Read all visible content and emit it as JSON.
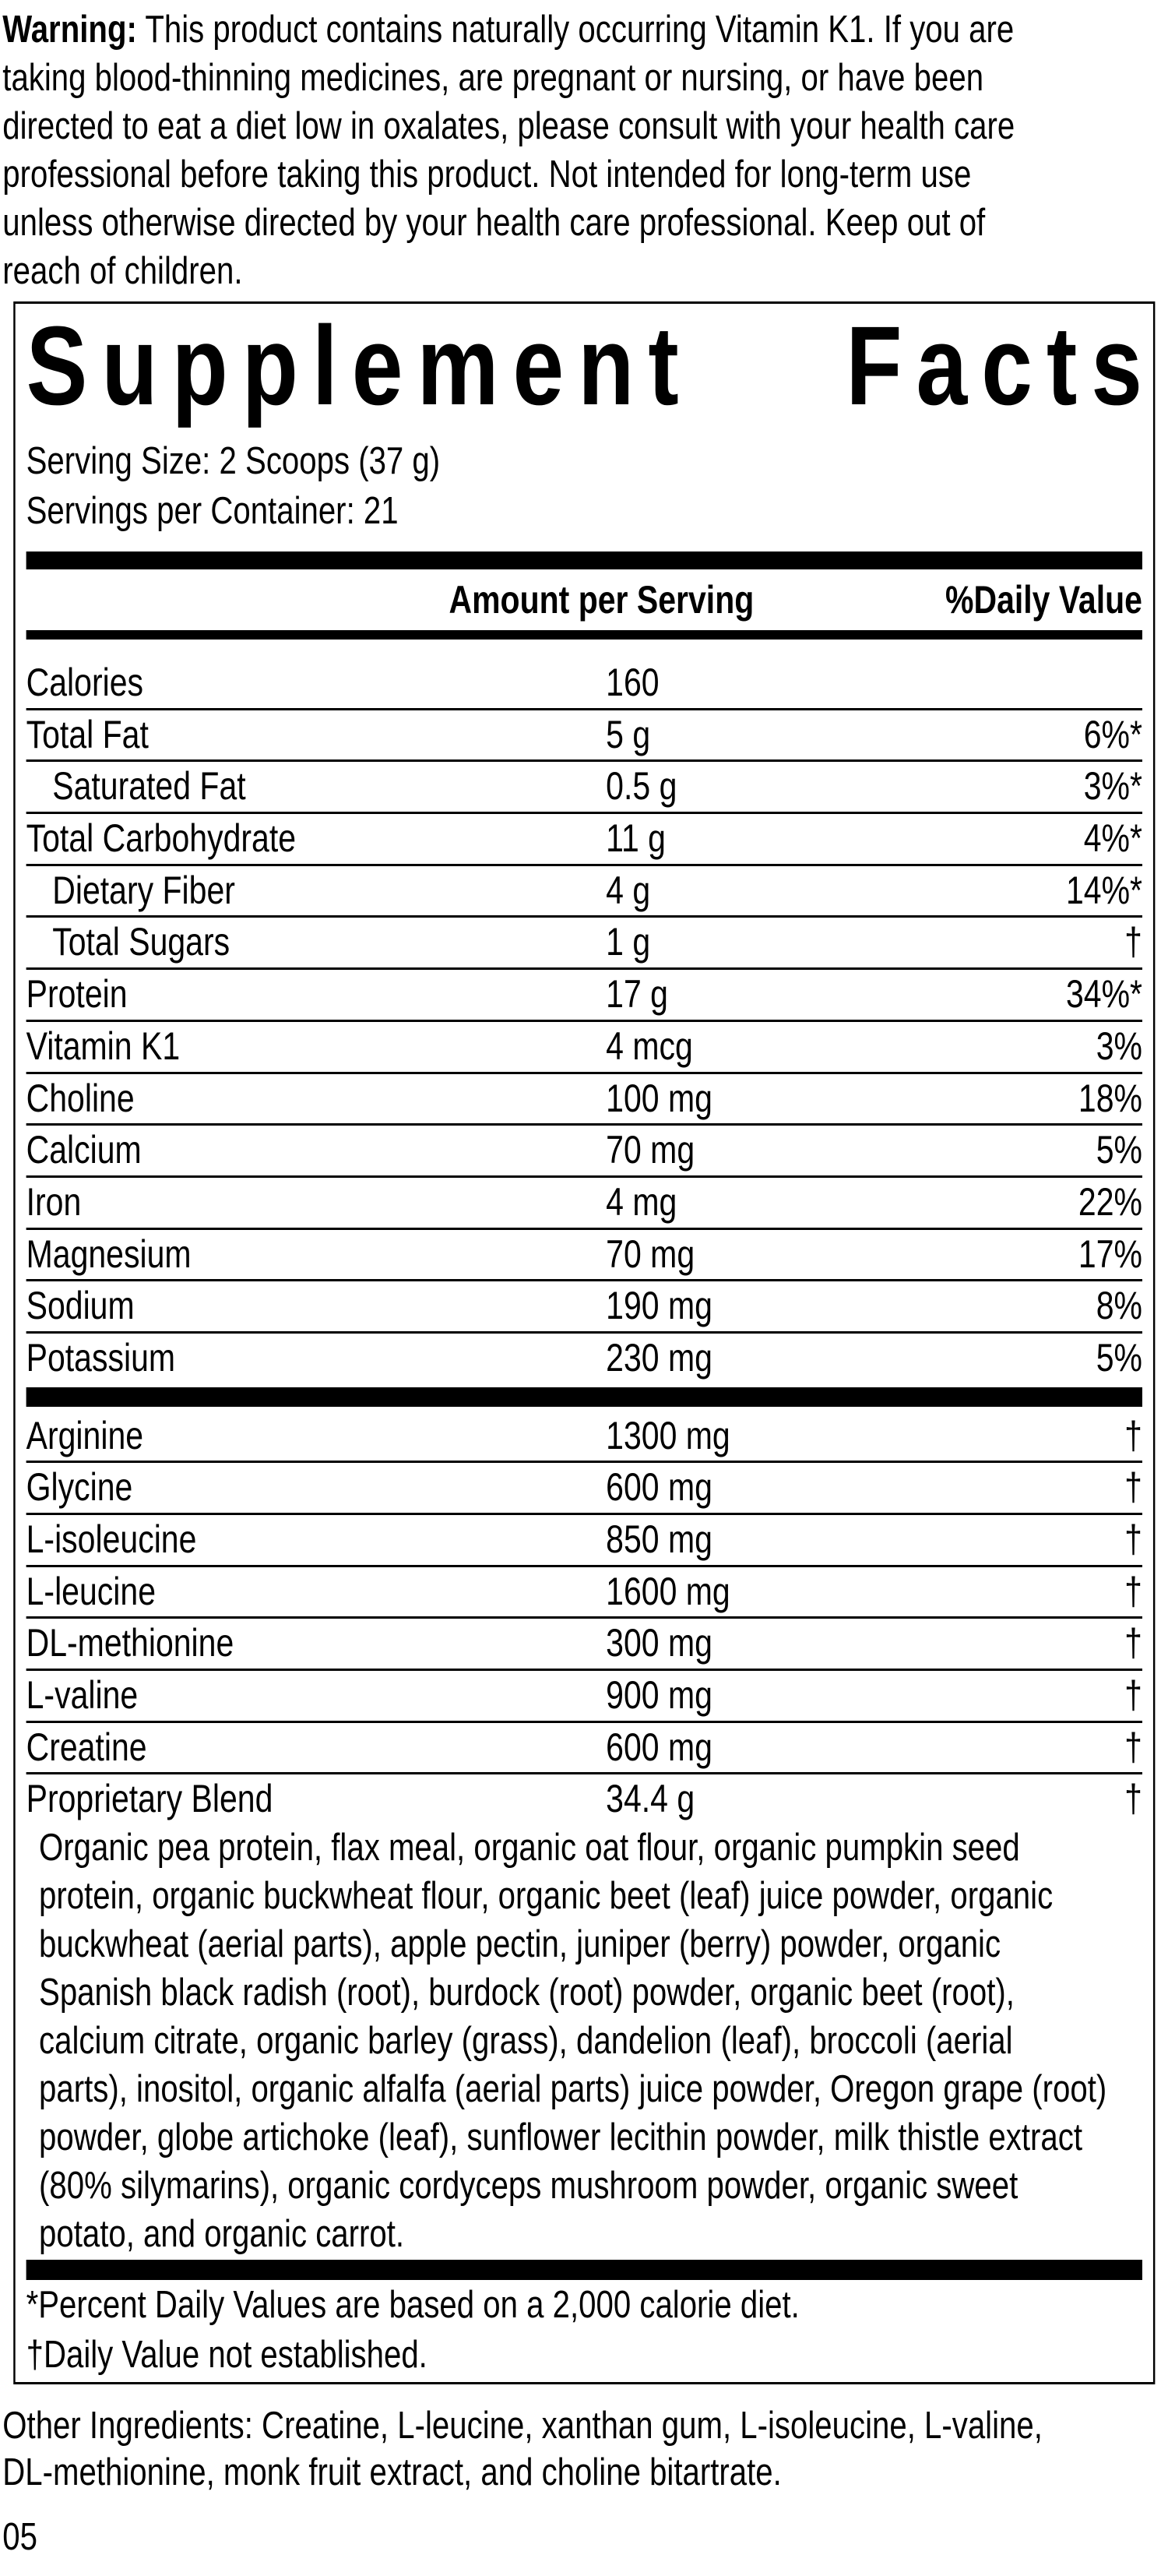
{
  "warning": {
    "label": "Warning:",
    "lines": [
      " This product contains naturally occurring Vitamin K1. If you are",
      "taking blood-thinning medicines, are pregnant or nursing, or have been",
      "directed to eat a diet low in oxalates, please consult with your health care",
      "professional before taking this product. Not intended for long-term use",
      "unless otherwise directed by your health care professional. Keep out of",
      "reach of children."
    ]
  },
  "facts": {
    "title_word1": "Supplement",
    "title_word2": "Facts",
    "serving_size": "Serving Size: 2 Scoops (37 g)",
    "servings_per_container": "Servings per Container: 21",
    "header_amount": "Amount per Serving",
    "header_dv": "%Daily Value",
    "nutrients": [
      {
        "name": "Calories",
        "amount": "160",
        "dv": ""
      },
      {
        "name": "Total Fat",
        "amount": "5 g",
        "dv": "6%*"
      },
      {
        "name": "Saturated Fat",
        "amount": "0.5 g",
        "dv": "3%*"
      },
      {
        "name": "Total Carbohydrate",
        "amount": "11 g",
        "dv": "4%*"
      },
      {
        "name": "Dietary Fiber",
        "amount": "4 g",
        "dv": "14%*"
      },
      {
        "name": "Total Sugars",
        "amount": "1 g",
        "dv": "†"
      },
      {
        "name": "Protein",
        "amount": "17 g",
        "dv": "34%*"
      },
      {
        "name": "Vitamin K1",
        "amount": "4 mcg",
        "dv": "3%"
      },
      {
        "name": "Choline",
        "amount": "100 mg",
        "dv": "18%"
      },
      {
        "name": "Calcium",
        "amount": "70 mg",
        "dv": "5%"
      },
      {
        "name": "Iron",
        "amount": "4 mg",
        "dv": "22%"
      },
      {
        "name": "Magnesium",
        "amount": "70 mg",
        "dv": "17%"
      },
      {
        "name": "Sodium",
        "amount": "190 mg",
        "dv": "8%"
      },
      {
        "name": "Potassium",
        "amount": "230 mg",
        "dv": "5%"
      }
    ],
    "others": [
      {
        "name": "Arginine",
        "amount": "1300 mg",
        "dv": "†"
      },
      {
        "name": "Glycine",
        "amount": "600 mg",
        "dv": "†"
      },
      {
        "name": "L-isoleucine",
        "amount": "850 mg",
        "dv": "†"
      },
      {
        "name": "L-leucine",
        "amount": "1600 mg",
        "dv": "†"
      },
      {
        "name": "DL-methionine",
        "amount": "300 mg",
        "dv": "†"
      },
      {
        "name": "L-valine",
        "amount": "900 mg",
        "dv": "†"
      },
      {
        "name": "Creatine",
        "amount": "600 mg",
        "dv": "†"
      },
      {
        "name": "Proprietary Blend",
        "amount": "34.4 g",
        "dv": "†"
      }
    ],
    "blend_lines": [
      "Organic pea protein, flax meal, organic oat flour, organic pumpkin seed",
      "protein, organic buckwheat flour, organic beet (leaf) juice powder, organic",
      "buckwheat (aerial parts), apple pectin, juniper (berry) powder, organic",
      "Spanish black radish (root), burdock (root) powder, organic beet (root),",
      "calcium citrate, organic barley (grass), dandelion (leaf), broccoli (aerial",
      "parts), inositol, organic alfalfa (aerial parts) juice powder, Oregon grape (root)",
      "powder, globe artichoke (leaf), sunflower lecithin powder, milk thistle extract",
      "(80% silymarins), organic cordyceps mushroom powder, organic sweet",
      "potato, and organic carrot."
    ],
    "footnote_dv": "*Percent Daily Values are based on a 2,000 calorie diet.",
    "footnote_dagger": "†Daily Value not established."
  },
  "other_ingredients": [
    "Other Ingredients: Creatine, L-leucine, xanthan gum, L-isoleucine, L-valine,",
    "DL-methionine, monk fruit extract, and choline bitartrate."
  ],
  "code": "05"
}
